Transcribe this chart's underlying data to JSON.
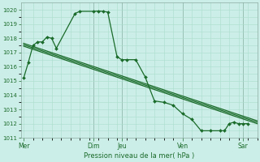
{
  "bg_color": "#cceee8",
  "grid_color": "#aaddcc",
  "line_color": "#1a6b2a",
  "xlabel": "Pression niveau de la mer( hPa )",
  "ylim": [
    1011,
    1020.5
  ],
  "yticks": [
    1011,
    1012,
    1013,
    1014,
    1015,
    1016,
    1017,
    1018,
    1019,
    1020
  ],
  "day_labels": [
    "Mer",
    "Dim",
    "Jeu",
    "Ven",
    "Sar"
  ],
  "day_positions": [
    0,
    7.5,
    10.5,
    17,
    23.5
  ],
  "xlim": [
    -0.3,
    25
  ],
  "series1_x": [
    0,
    0.5,
    1,
    1.5,
    2,
    2.5,
    3,
    3.5,
    5.5,
    6,
    7.5,
    8,
    8.5,
    9,
    10,
    10.5,
    11,
    12,
    13,
    14,
    15,
    16,
    17,
    18,
    19,
    20,
    21,
    21.5,
    22,
    22.5,
    23,
    23.5,
    24
  ],
  "series1_y": [
    1015.2,
    1016.3,
    1017.5,
    1017.75,
    1017.75,
    1018.1,
    1018.0,
    1017.3,
    1019.75,
    1019.9,
    1019.9,
    1019.92,
    1019.9,
    1019.85,
    1016.7,
    1016.5,
    1016.5,
    1016.5,
    1015.3,
    1013.6,
    1013.5,
    1013.3,
    1012.7,
    1012.3,
    1011.5,
    1011.5,
    1011.5,
    1011.5,
    1012.0,
    1012.1,
    1012.0,
    1012.0,
    1012.0
  ],
  "series2_x": [
    0,
    25
  ],
  "series2_y": [
    1017.55,
    1012.1
  ],
  "series3_x": [
    0,
    25
  ],
  "series3_y": [
    1017.65,
    1012.2
  ],
  "series4_x": [
    0,
    25
  ],
  "series4_y": [
    1017.45,
    1012.0
  ],
  "vline_positions": [
    7.5,
    10.5,
    17,
    23.5
  ]
}
